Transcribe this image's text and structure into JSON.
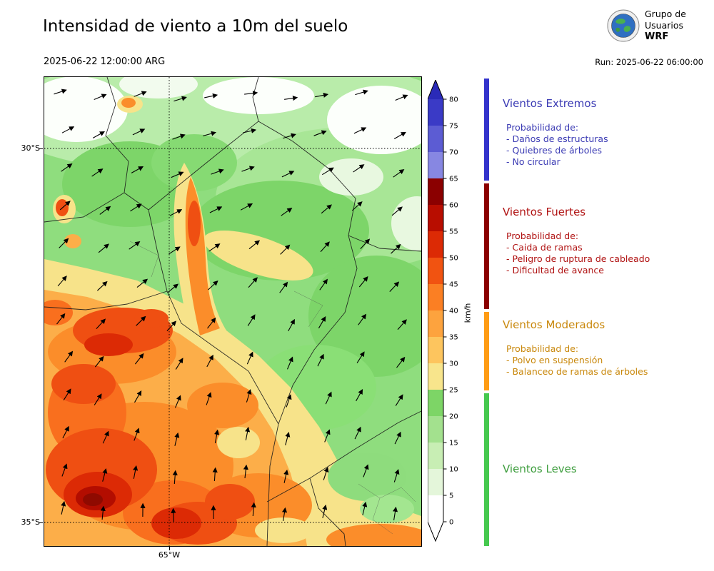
{
  "header": {
    "title": "Intensidad de viento a 10m del suelo",
    "valid_time": "2025-06-22 12:00:00 ARG",
    "run_time": "Run: 2025-06-22 06:00:00",
    "logo_lines": [
      "Grupo de",
      "Usuarios",
      "WRF"
    ]
  },
  "map": {
    "lat_labels": [
      "30°S",
      "35°S"
    ],
    "lon_labels": [
      "65°W"
    ]
  },
  "colorbar": {
    "unit": "km/h",
    "tick_labels": [
      "80",
      "75",
      "70",
      "65",
      "60",
      "55",
      "50",
      "45",
      "40",
      "35",
      "30",
      "25",
      "20",
      "15",
      "10",
      "5",
      "0"
    ],
    "extend_above_color": "#2a2ab8",
    "extend_below_color": "#ffffff",
    "segments": [
      {
        "from": 0,
        "to": 5,
        "color": "#ffffff"
      },
      {
        "from": 5,
        "to": 10,
        "color": "#e4f6da"
      },
      {
        "from": 10,
        "to": 15,
        "color": "#c8eeb4"
      },
      {
        "from": 15,
        "to": 20,
        "color": "#a3e18e"
      },
      {
        "from": 20,
        "to": 25,
        "color": "#7dd566"
      },
      {
        "from": 25,
        "to": 30,
        "color": "#f8e58c"
      },
      {
        "from": 30,
        "to": 35,
        "color": "#fdc55e"
      },
      {
        "from": 35,
        "to": 40,
        "color": "#fda33e"
      },
      {
        "from": 40,
        "to": 45,
        "color": "#fb7f23"
      },
      {
        "from": 45,
        "to": 50,
        "color": "#f15311"
      },
      {
        "from": 50,
        "to": 55,
        "color": "#dc2a05"
      },
      {
        "from": 55,
        "to": 60,
        "color": "#b80d00"
      },
      {
        "from": 60,
        "to": 65,
        "color": "#8b0000"
      },
      {
        "from": 65,
        "to": 70,
        "color": "#8787e2"
      },
      {
        "from": 70,
        "to": 75,
        "color": "#5c5cd3"
      },
      {
        "from": 75,
        "to": 80,
        "color": "#3a3ac6"
      }
    ]
  },
  "legend": {
    "sections": [
      {
        "title": "Vientos Extremos",
        "text_color": "#3b3bb4",
        "bar_color": "#3333cc",
        "prob_title": "Probabilidad de:",
        "items": [
          "- Daños de estructuras",
          "- Quiebres de árboles",
          "- No circular"
        ]
      },
      {
        "title": "Vientos Fuertes",
        "text_color": "#b01212",
        "bar_color": "#8b0000",
        "prob_title": "Probabilidad de:",
        "items": [
          "- Caida de ramas",
          "- Peligro de ruptura de cableado",
          "- Dificultad de avance"
        ]
      },
      {
        "title": "Vientos Moderados",
        "text_color": "#c9880c",
        "bar_color": "#ff9c14",
        "prob_title": "Probabilidad de:",
        "items": [
          "- Polvo en suspensión",
          "- Balanceo de ramas de árboles"
        ]
      },
      {
        "title": "Vientos Leves",
        "text_color": "#3f9e3f",
        "bar_color": "#46c94f",
        "prob_title": "",
        "items": []
      }
    ]
  },
  "chart_data": {
    "type": "heatmap",
    "title": "Intensidad de viento a 10m del suelo",
    "unit": "km/h",
    "colorbar_range": [
      0,
      80
    ],
    "colorbar_tick_step": 5,
    "wind_categories": [
      {
        "name": "Vientos Leves",
        "range_kmh": [
          0,
          25
        ]
      },
      {
        "name": "Vientos Moderados",
        "range_kmh": [
          25,
          40
        ]
      },
      {
        "name": "Vientos Fuertes",
        "range_kmh": [
          40,
          65
        ]
      },
      {
        "name": "Vientos Extremos",
        "range_kmh": [
          65,
          80
        ]
      }
    ]
  }
}
